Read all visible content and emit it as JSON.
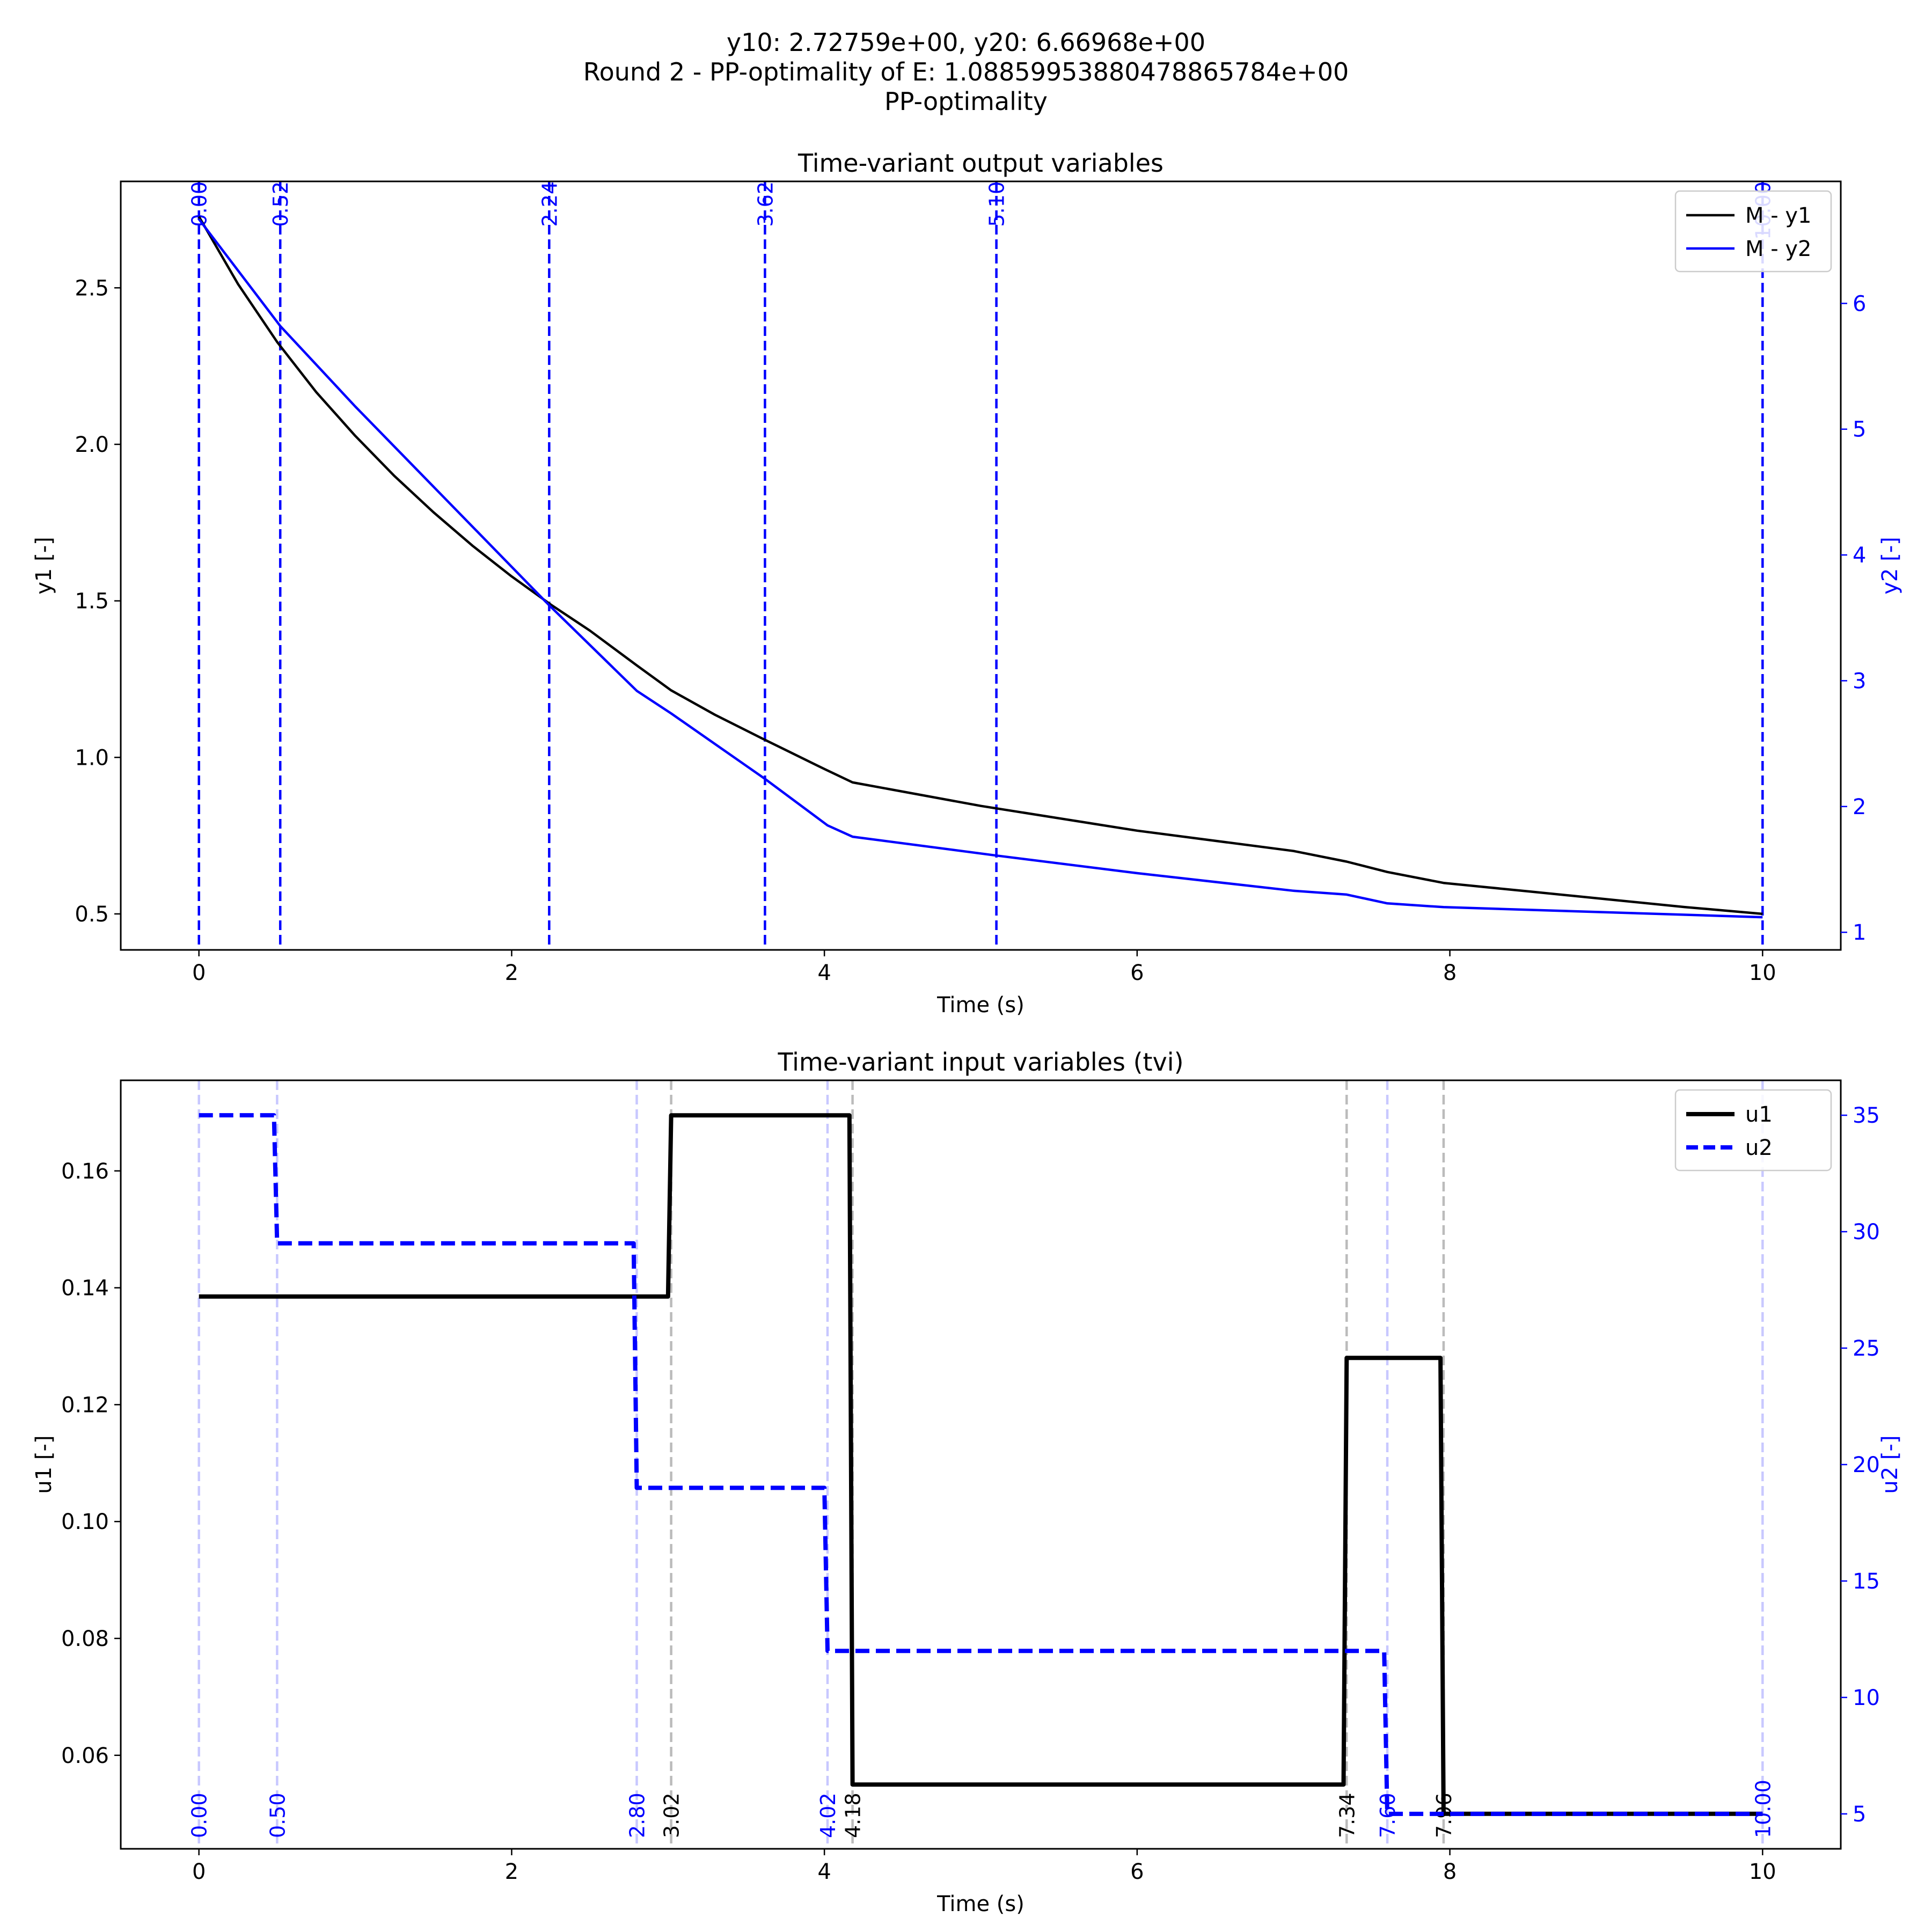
{
  "suptitle": {
    "line1": "y10: 2.72759e+00, y20: 6.66968e+00",
    "line2": "Round 2 - PP-optimality of E: 1.08859953880478865784e+00",
    "line3": "PP-optimality"
  },
  "colors": {
    "black": "#000000",
    "blue": "#0000ff",
    "grey": "#bbbbbb",
    "light_blue": "#c8c8ff"
  },
  "chart_data": [
    {
      "type": "line",
      "title": "Time-variant output variables",
      "xlabel": "Time (s)",
      "ylabel": "y1 [-]",
      "y2label": "y2 [-]",
      "xlim": [
        -0.5,
        10.5
      ],
      "ylim": [
        0.385,
        2.84
      ],
      "y2lim": [
        0.86,
        6.97
      ],
      "xticks": [
        "0",
        "2",
        "4",
        "6",
        "8",
        "10"
      ],
      "yticks": [
        "0.5",
        "1.0",
        "1.5",
        "2.0",
        "2.5"
      ],
      "y2ticks": [
        "1",
        "2",
        "3",
        "4",
        "5",
        "6"
      ],
      "legend_position": "top-right",
      "series": [
        {
          "name": "M - y1",
          "axis": "left",
          "color": "#000000",
          "x": [
            0,
            0.25,
            0.5,
            0.75,
            1.0,
            1.25,
            1.5,
            1.75,
            2.0,
            2.25,
            2.5,
            2.8,
            3.02,
            3.3,
            3.6,
            4.0,
            4.18,
            5.0,
            6.0,
            7.0,
            7.34,
            7.6,
            7.96,
            8.5,
            9.0,
            9.5,
            10.0
          ],
          "values": [
            2.72759,
            2.512,
            2.327,
            2.167,
            2.027,
            1.899,
            1.783,
            1.676,
            1.578,
            1.488,
            1.405,
            1.294,
            1.214,
            1.136,
            1.061,
            0.963,
            0.92,
            0.845,
            0.766,
            0.701,
            0.667,
            0.634,
            0.599,
            0.572,
            0.547,
            0.522,
            0.5
          ]
        },
        {
          "name": "M - y2",
          "axis": "right",
          "color": "#0000ff",
          "x": [
            0,
            0.52,
            1.0,
            2.24,
            2.8,
            3.02,
            3.62,
            4.02,
            4.18,
            5.1,
            6.0,
            7.0,
            7.34,
            7.6,
            7.96,
            10.0
          ],
          "values": [
            6.66968,
            5.82,
            5.18,
            3.6,
            2.92,
            2.74,
            2.22,
            1.85,
            1.76,
            1.61,
            1.47,
            1.33,
            1.3,
            1.23,
            1.2,
            1.12
          ]
        }
      ],
      "vlines": [
        {
          "x": 0.0,
          "label": "0.00"
        },
        {
          "x": 0.52,
          "label": "0.52"
        },
        {
          "x": 2.24,
          "label": "2.24"
        },
        {
          "x": 3.62,
          "label": "3.62"
        },
        {
          "x": 5.1,
          "label": "5.10"
        },
        {
          "x": 10.0,
          "label": "10.00"
        }
      ]
    },
    {
      "type": "line",
      "title": "Time-variant input variables (tvi)",
      "xlabel": "Time (s)",
      "ylabel": "u1 [-]",
      "y2label": "u2 [-]",
      "xlim": [
        -0.5,
        10.5
      ],
      "ylim": [
        0.044,
        0.1755
      ],
      "y2lim": [
        3.5,
        36.5
      ],
      "xticks": [
        "0",
        "2",
        "4",
        "6",
        "8",
        "10"
      ],
      "yticks": [
        "0.06",
        "0.08",
        "0.10",
        "0.12",
        "0.14",
        "0.16"
      ],
      "y2ticks": [
        "5",
        "10",
        "15",
        "20",
        "25",
        "30",
        "35"
      ],
      "legend_position": "top-right",
      "series": [
        {
          "name": "u1",
          "axis": "left",
          "style": "solid",
          "color": "#000000",
          "x": [
            0,
            3.0,
            3.02,
            4.16,
            4.18,
            7.32,
            7.34,
            7.94,
            7.96,
            10.0
          ],
          "values": [
            0.1385,
            0.1385,
            0.1695,
            0.1695,
            0.055,
            0.055,
            0.128,
            0.128,
            0.05,
            0.05
          ]
        },
        {
          "name": "u2",
          "axis": "right",
          "style": "dashed",
          "color": "#0000ff",
          "x": [
            0,
            0.48,
            0.5,
            2.78,
            2.8,
            4.0,
            4.02,
            7.58,
            7.6,
            10.0
          ],
          "values": [
            35.0,
            35.0,
            29.5,
            29.5,
            19.0,
            19.0,
            12.0,
            12.0,
            5.0,
            5.0
          ]
        }
      ],
      "vlines_u1": [
        {
          "x": 3.02,
          "label": "3.02"
        },
        {
          "x": 4.18,
          "label": "4.18"
        },
        {
          "x": 7.34,
          "label": "7.34"
        },
        {
          "x": 7.96,
          "label": "7.96"
        }
      ],
      "vlines_u2": [
        {
          "x": 0.0,
          "label": "0.00"
        },
        {
          "x": 0.5,
          "label": "0.50"
        },
        {
          "x": 2.8,
          "label": "2.80"
        },
        {
          "x": 4.02,
          "label": "4.02"
        },
        {
          "x": 7.6,
          "label": "7.60"
        },
        {
          "x": 10.0,
          "label": "10.00"
        }
      ]
    }
  ]
}
